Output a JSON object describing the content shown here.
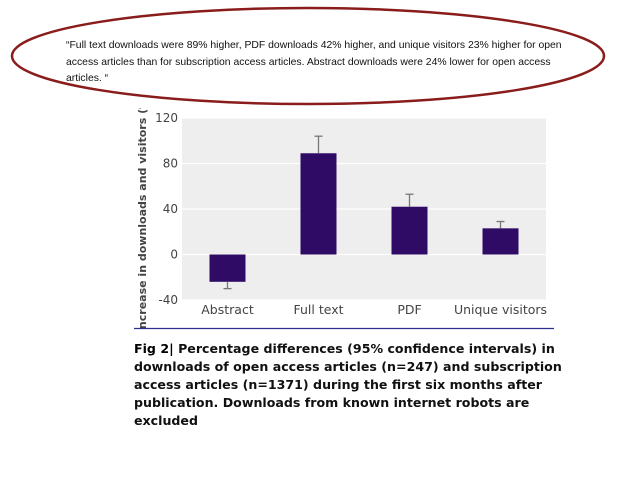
{
  "quote": "“Full text downloads were 89% higher, PDF downloads 42% higher, and unique visitors 23% higher for open access articles than for subscription access articles. Abstract downloads were 24% lower for open access articles. “",
  "colors": {
    "bar": "#2f0b66",
    "panel": "#eeeeee",
    "ellipse": "#8a1c1c",
    "caption_rule": "#2f2f8f"
  },
  "chart_data": {
    "type": "bar",
    "categories": [
      "Abstract",
      "Full text",
      "PDF",
      "Unique visitors"
    ],
    "values": [
      -24,
      89,
      42,
      23
    ],
    "error_low": [
      -30,
      73,
      31,
      17
    ],
    "error_high": [
      -18,
      104,
      53,
      29
    ],
    "ylabel": "Increase in downloads and visitors (%)",
    "ylim": [
      -40,
      120
    ],
    "yticks": [
      120,
      80,
      40,
      0,
      -40
    ],
    "ytick_labels": [
      "120",
      "80",
      "40",
      "0",
      "-40"
    ],
    "grid": true
  },
  "caption": {
    "fig_label": "Fig 2|",
    "text": "Percentage differences (95% confidence intervals) in downloads of open access articles (n=247) and subscription access articles (n=1371) during the first six months after publication. Downloads from known internet robots are excluded"
  }
}
